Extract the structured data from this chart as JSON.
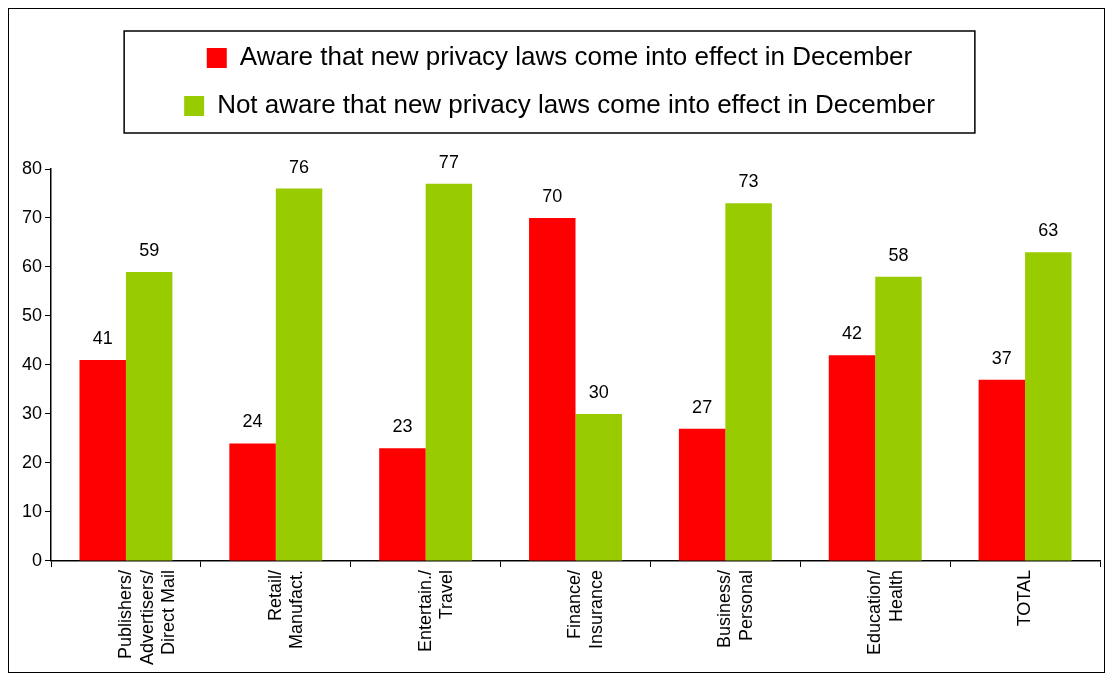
{
  "chart_data": {
    "type": "bar",
    "categories": [
      "Publishers/ Advertisers/ Direct Mail",
      "Retail/ Manufact.",
      "Entertain./ Travel",
      "Finance/ Insurance",
      "Business/ Personal",
      "Education/ Health",
      "TOTAL"
    ],
    "series": [
      {
        "name": "Aware that new privacy laws come into effect in December",
        "color": "#ff0000",
        "values": [
          41,
          24,
          23,
          70,
          27,
          42,
          37
        ]
      },
      {
        "name": "Not aware that new privacy laws come into effect in December",
        "color": "#99cc00",
        "values": [
          59,
          76,
          77,
          30,
          73,
          58,
          63
        ]
      }
    ],
    "ylim": [
      0,
      80
    ],
    "yticks": [
      0,
      10,
      20,
      30,
      40,
      50,
      60,
      70,
      80
    ],
    "data_labels": true,
    "legend": "top",
    "grid": false
  }
}
